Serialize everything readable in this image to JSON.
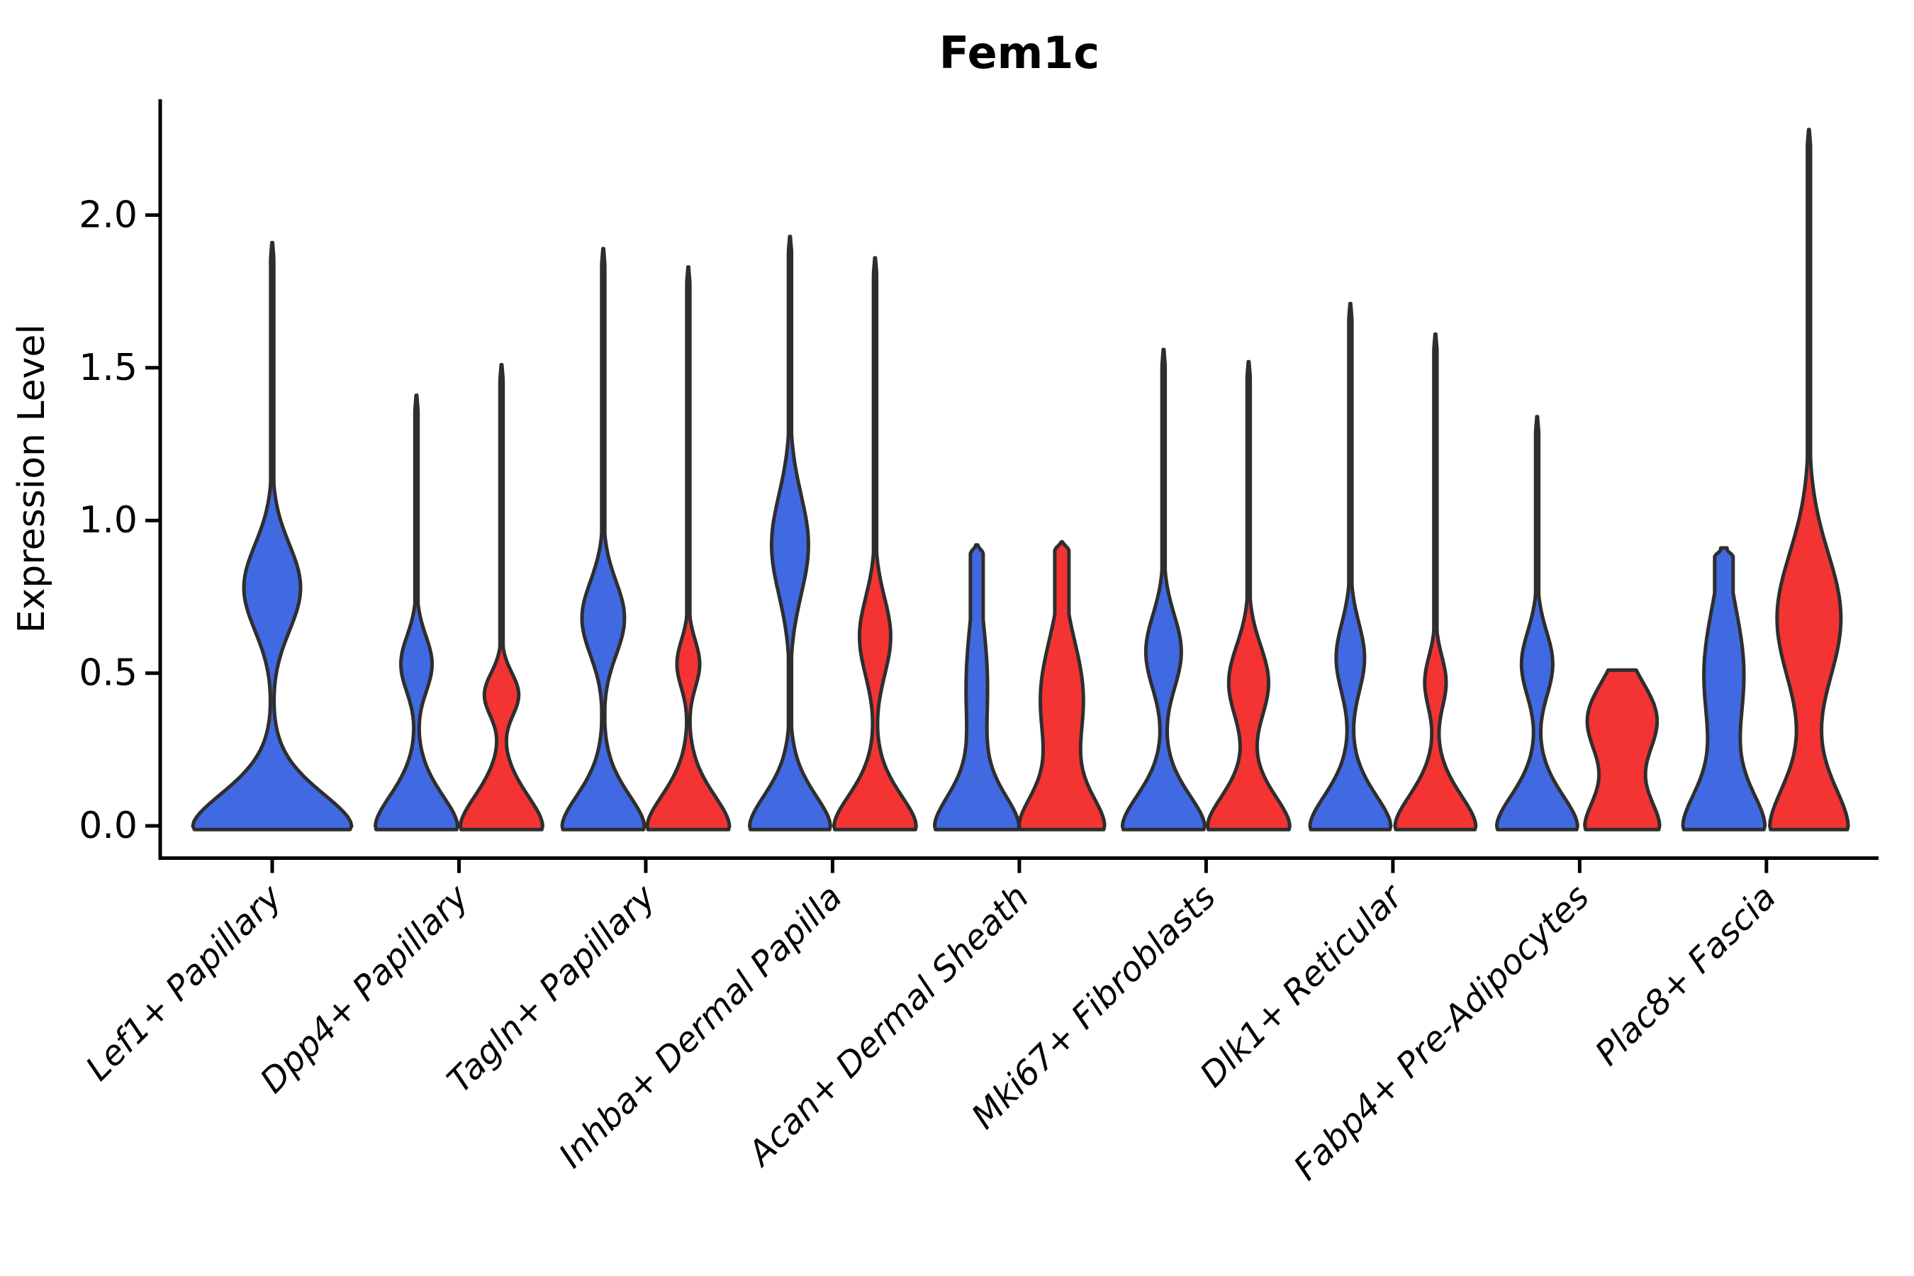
{
  "chart_data": {
    "type": "violin",
    "title": "Fem1c",
    "ylabel": "Expression Level",
    "ylim": [
      -0.07,
      2.38
    ],
    "yticks": [
      0.0,
      0.5,
      1.0,
      1.5,
      2.0
    ],
    "ytick_labels": [
      "0.0",
      "0.5",
      "1.0",
      "1.5",
      "2.0"
    ],
    "grid": false,
    "legend_position": "none",
    "x_tick_rotation": 45,
    "categories": [
      "Lef1+ Papillary",
      "Dpp4+ Papillary",
      "Tagln+ Papillary",
      "Inhba+ Dermal Papilla",
      "Acan+ Dermal Sheath",
      "Mki67+ Fibroblasts",
      "Dlk1+ Reticular",
      "Fabp4+ Pre-Adipocytes",
      "Plac8+ Fascia"
    ],
    "style": {
      "edge_color": "#2E2E2E",
      "edge_width": 5,
      "axis_color": "#000000",
      "background": "#FFFFFF",
      "blue": "#4169E1",
      "red": "#F43333"
    },
    "series": [
      {
        "name": "blue",
        "color": "#4169E1",
        "violins": [
          {
            "max": 1.91,
            "mode": 0.78,
            "mode_halfwidth": 40,
            "mode_spread": 0.2,
            "base_halfwidth": 112,
            "base_spread": 0.17,
            "layout": "full"
          },
          {
            "max": 1.41,
            "mode": 0.53,
            "mode_halfwidth": 22,
            "mode_spread": 0.13,
            "base_halfwidth": 58,
            "base_spread": 0.16,
            "layout": "half"
          },
          {
            "max": 1.89,
            "mode": 0.68,
            "mode_halfwidth": 30,
            "mode_spread": 0.17,
            "base_halfwidth": 58,
            "base_spread": 0.16,
            "layout": "half"
          },
          {
            "max": 1.93,
            "mode": 0.92,
            "mode_halfwidth": 26,
            "mode_spread": 0.23,
            "base_halfwidth": 57,
            "base_spread": 0.16,
            "layout": "half"
          },
          {
            "max": 0.92,
            "mode": 0.46,
            "mode_halfwidth": 15,
            "mode_spread": 0.3,
            "base_halfwidth": 58,
            "base_spread": 0.16,
            "layout": "half",
            "top_halfwidth": 9
          },
          {
            "max": 1.56,
            "mode": 0.57,
            "mode_halfwidth": 25,
            "mode_spread": 0.17,
            "base_halfwidth": 58,
            "base_spread": 0.16,
            "layout": "half"
          },
          {
            "max": 1.71,
            "mode": 0.55,
            "mode_halfwidth": 20,
            "mode_spread": 0.16,
            "base_halfwidth": 57,
            "base_spread": 0.16,
            "layout": "half"
          },
          {
            "max": 1.34,
            "mode": 0.53,
            "mode_halfwidth": 22,
            "mode_spread": 0.15,
            "base_halfwidth": 57,
            "base_spread": 0.16,
            "layout": "half"
          },
          {
            "max": 0.91,
            "mode": 0.5,
            "mode_halfwidth": 28,
            "mode_spread": 0.3,
            "base_halfwidth": 56,
            "base_spread": 0.18,
            "layout": "half",
            "top_halfwidth": 13
          }
        ]
      },
      {
        "name": "red",
        "color": "#F43333",
        "violins": [
          null,
          {
            "max": 1.51,
            "mode": 0.43,
            "mode_halfwidth": 24,
            "mode_spread": 0.1,
            "base_halfwidth": 58,
            "base_spread": 0.16,
            "layout": "half"
          },
          {
            "max": 1.83,
            "mode": 0.53,
            "mode_halfwidth": 16,
            "mode_spread": 0.11,
            "base_halfwidth": 58,
            "base_spread": 0.16,
            "layout": "half"
          },
          {
            "max": 1.86,
            "mode": 0.62,
            "mode_halfwidth": 22,
            "mode_spread": 0.18,
            "base_halfwidth": 58,
            "base_spread": 0.16,
            "layout": "half"
          },
          {
            "max": 0.93,
            "mode": 0.42,
            "mode_halfwidth": 30,
            "mode_spread": 0.26,
            "base_halfwidth": 58,
            "base_spread": 0.16,
            "layout": "half",
            "top_halfwidth": 10
          },
          {
            "max": 1.52,
            "mode": 0.47,
            "mode_halfwidth": 28,
            "mode_spread": 0.17,
            "base_halfwidth": 58,
            "base_spread": 0.16,
            "layout": "half"
          },
          {
            "max": 1.61,
            "mode": 0.47,
            "mode_halfwidth": 15,
            "mode_spread": 0.12,
            "base_halfwidth": 57,
            "base_spread": 0.16,
            "layout": "half"
          },
          {
            "max": 0.51,
            "mode": 0.35,
            "mode_halfwidth": 48,
            "mode_spread": 0.17,
            "base_halfwidth": 52,
            "base_spread": 0.16,
            "layout": "half",
            "flat_top": true
          },
          {
            "max": 2.28,
            "mode": 0.68,
            "mode_halfwidth": 45,
            "mode_spread": 0.3,
            "base_halfwidth": 55,
            "base_spread": 0.21,
            "layout": "half"
          }
        ]
      }
    ]
  }
}
